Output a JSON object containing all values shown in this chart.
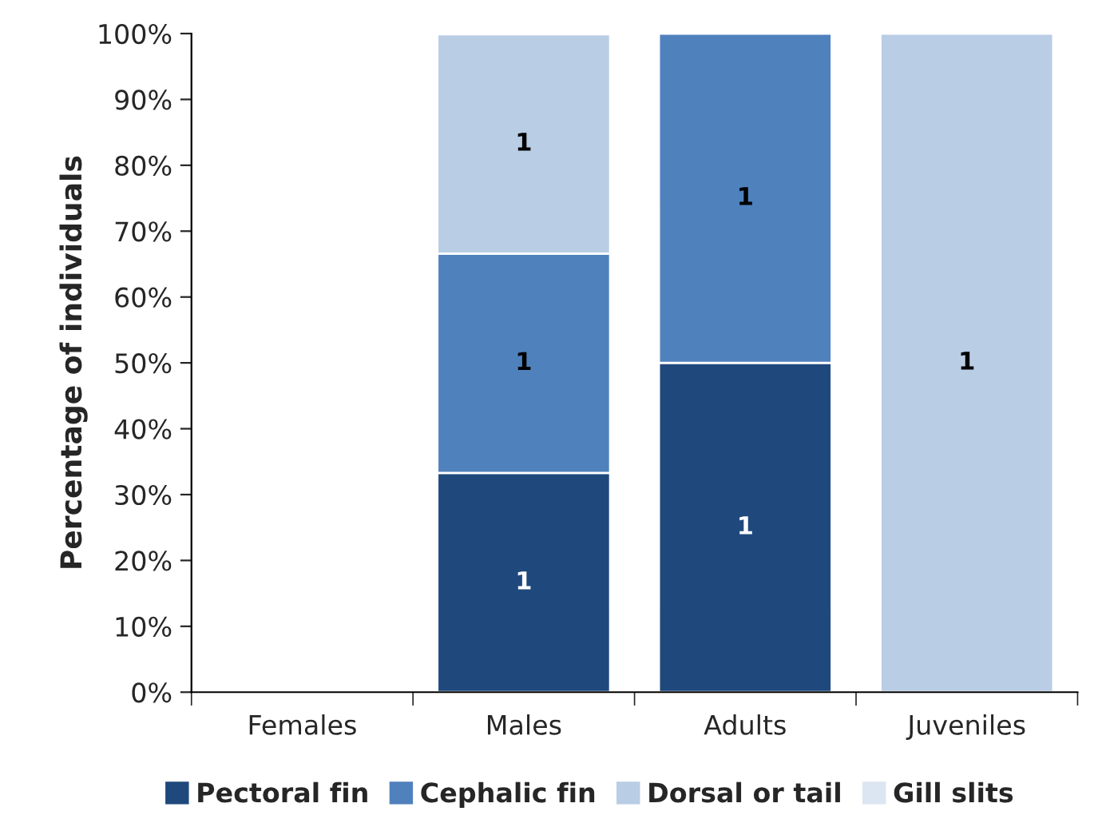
{
  "chart_data": {
    "type": "bar",
    "stacked": true,
    "ylabel": "Percentage of individuals",
    "categories": [
      "Females",
      "Males",
      "Adults",
      "Juveniles"
    ],
    "series": [
      {
        "name": "Pectoral fin",
        "color": "#1f497d",
        "values": [
          null,
          33.3,
          50,
          null
        ]
      },
      {
        "name": "Cephalic fin",
        "color": "#4f81bd",
        "values": [
          null,
          33.3,
          50,
          null
        ]
      },
      {
        "name": "Dorsal or tail",
        "color": "#b9cde5",
        "values": [
          null,
          33.3,
          null,
          100
        ]
      },
      {
        "name": "Gill slits",
        "color": "#dce6f2",
        "values": [
          null,
          null,
          null,
          null
        ]
      }
    ],
    "annotations": [
      "1",
      "1",
      "1",
      "1",
      "1",
      "1"
    ],
    "ylim": [
      0,
      100
    ],
    "yticks": [
      {
        "value": 0,
        "label": "0%"
      },
      {
        "value": 10,
        "label": "10%"
      },
      {
        "value": 20,
        "label": "20%"
      },
      {
        "value": 30,
        "label": "30%"
      },
      {
        "value": 40,
        "label": "40%"
      },
      {
        "value": 50,
        "label": "50%"
      },
      {
        "value": 60,
        "label": "60%"
      },
      {
        "value": 70,
        "label": "70%"
      },
      {
        "value": 80,
        "label": "80%"
      },
      {
        "value": 90,
        "label": "90%"
      },
      {
        "value": 100,
        "label": "100%"
      }
    ],
    "grid": false,
    "legend": "bottom"
  }
}
